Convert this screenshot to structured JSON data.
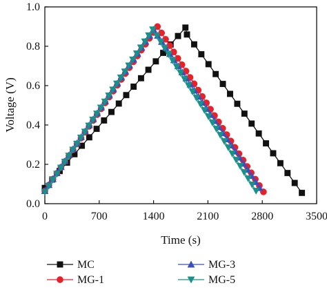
{
  "chart_data": {
    "type": "line",
    "title": "",
    "xlabel": "Time (s)",
    "ylabel": "Voltage (V)",
    "xlim": [
      0,
      3500
    ],
    "ylim": [
      0,
      1.0
    ],
    "xticks": [
      0,
      700,
      1400,
      2100,
      2800,
      3500
    ],
    "yticks": [
      0.0,
      0.2,
      0.4,
      0.6,
      0.8,
      1.0
    ],
    "xtick_labels": [
      "0",
      "700",
      "1400",
      "2100",
      "2800",
      "3500"
    ],
    "ytick_labels": [
      "0.0",
      "0.2",
      "0.4",
      "0.6",
      "0.8",
      "1.0"
    ],
    "grid": false,
    "legend_position": "below",
    "series": [
      {
        "name": "MC",
        "color": "#111111",
        "marker": "square",
        "x": [
          0,
          1810,
          1830,
          3310
        ],
        "y": [
          0.08,
          0.895,
          0.86,
          0.055
        ],
        "marker_step": 95
      },
      {
        "name": "MG-1",
        "color": "#e8202a",
        "marker": "circle",
        "x": [
          0,
          1450,
          2815
        ],
        "y": [
          0.065,
          0.9,
          0.06
        ],
        "marker_step": 52
      },
      {
        "name": "MG-3",
        "color": "#3a4fbf",
        "marker": "triangle-up",
        "x": [
          0,
          1400,
          2765
        ],
        "y": [
          0.065,
          0.885,
          0.08
        ],
        "marker_step": 52
      },
      {
        "name": "MG-5",
        "color": "#19908a",
        "marker": "triangle-down",
        "x": [
          0,
          1390,
          2720
        ],
        "y": [
          0.06,
          0.885,
          0.065
        ],
        "marker_step": 52
      }
    ]
  }
}
